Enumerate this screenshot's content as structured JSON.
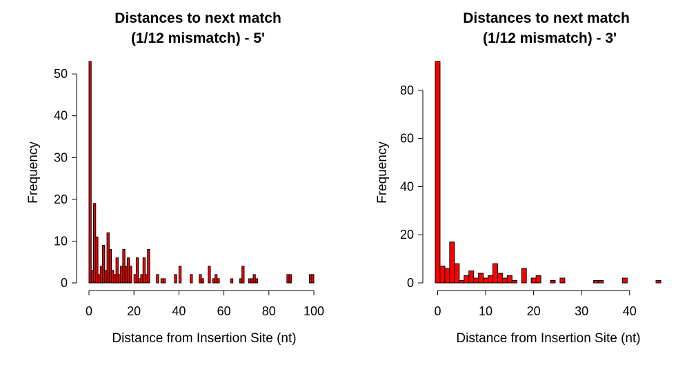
{
  "colors": {
    "bar_fill": "#ff0000",
    "bar_stroke": "#000000"
  },
  "chart_data": [
    {
      "type": "bar",
      "title": [
        "Distances to next match",
        "(1/12 mismatch) - 5'"
      ],
      "xlabel": "Distance from Insertion Site (nt)",
      "ylabel": "Frequency",
      "xlim": [
        0,
        100
      ],
      "ylim": [
        0,
        53
      ],
      "xticks": [
        0,
        20,
        40,
        60,
        80,
        100
      ],
      "yticks": [
        0,
        10,
        20,
        30,
        40,
        50
      ],
      "bin_width": 1,
      "grid": false,
      "legend": "none",
      "bins": [
        {
          "x": 0,
          "y": 53
        },
        {
          "x": 1,
          "y": 3
        },
        {
          "x": 2,
          "y": 19
        },
        {
          "x": 3,
          "y": 11
        },
        {
          "x": 4,
          "y": 2
        },
        {
          "x": 5,
          "y": 4
        },
        {
          "x": 6,
          "y": 9
        },
        {
          "x": 7,
          "y": 3
        },
        {
          "x": 8,
          "y": 12
        },
        {
          "x": 9,
          "y": 8
        },
        {
          "x": 10,
          "y": 3
        },
        {
          "x": 11,
          "y": 2
        },
        {
          "x": 12,
          "y": 6
        },
        {
          "x": 13,
          "y": 2
        },
        {
          "x": 14,
          "y": 4
        },
        {
          "x": 15,
          "y": 8
        },
        {
          "x": 16,
          "y": 4
        },
        {
          "x": 17,
          "y": 6
        },
        {
          "x": 18,
          "y": 4
        },
        {
          "x": 20,
          "y": 2
        },
        {
          "x": 21,
          "y": 6
        },
        {
          "x": 22,
          "y": 1
        },
        {
          "x": 23,
          "y": 2
        },
        {
          "x": 24,
          "y": 6
        },
        {
          "x": 25,
          "y": 2
        },
        {
          "x": 26,
          "y": 8
        },
        {
          "x": 30,
          "y": 2
        },
        {
          "x": 32,
          "y": 1
        },
        {
          "x": 33,
          "y": 1
        },
        {
          "x": 38,
          "y": 2
        },
        {
          "x": 40,
          "y": 4
        },
        {
          "x": 45,
          "y": 2
        },
        {
          "x": 49,
          "y": 2
        },
        {
          "x": 50,
          "y": 1
        },
        {
          "x": 53,
          "y": 4
        },
        {
          "x": 55,
          "y": 1
        },
        {
          "x": 56,
          "y": 2
        },
        {
          "x": 57,
          "y": 1
        },
        {
          "x": 63,
          "y": 1
        },
        {
          "x": 67,
          "y": 1
        },
        {
          "x": 68,
          "y": 4
        },
        {
          "x": 71,
          "y": 1
        },
        {
          "x": 72,
          "y": 1
        },
        {
          "x": 73,
          "y": 2
        },
        {
          "x": 74,
          "y": 1
        },
        {
          "x": 88,
          "y": 2
        },
        {
          "x": 89,
          "y": 2
        },
        {
          "x": 98,
          "y": 2
        },
        {
          "x": 99,
          "y": 2
        }
      ]
    },
    {
      "type": "bar",
      "title": [
        "Distances to next match",
        "(1/12 mismatch) - 3'"
      ],
      "xlabel": "Distance from Insertion Site (nt)",
      "ylabel": "Frequency",
      "xlim": [
        -0.5,
        46.5
      ],
      "ylim": [
        0,
        92
      ],
      "xticks": [
        0,
        10,
        20,
        30,
        40
      ],
      "yticks": [
        0,
        20,
        40,
        60,
        80
      ],
      "bin_width": 1,
      "grid": false,
      "legend": "none",
      "bins": [
        {
          "x": 0,
          "y": 92
        },
        {
          "x": 1,
          "y": 7
        },
        {
          "x": 2,
          "y": 6
        },
        {
          "x": 3,
          "y": 17
        },
        {
          "x": 4,
          "y": 8
        },
        {
          "x": 5,
          "y": 1
        },
        {
          "x": 6,
          "y": 3
        },
        {
          "x": 7,
          "y": 5
        },
        {
          "x": 8,
          "y": 2
        },
        {
          "x": 9,
          "y": 4
        },
        {
          "x": 10,
          "y": 2
        },
        {
          "x": 11,
          "y": 3
        },
        {
          "x": 12,
          "y": 8
        },
        {
          "x": 13,
          "y": 4
        },
        {
          "x": 14,
          "y": 2
        },
        {
          "x": 15,
          "y": 3
        },
        {
          "x": 16,
          "y": 1
        },
        {
          "x": 18,
          "y": 6
        },
        {
          "x": 20,
          "y": 2
        },
        {
          "x": 21,
          "y": 3
        },
        {
          "x": 24,
          "y": 1
        },
        {
          "x": 26,
          "y": 2
        },
        {
          "x": 33,
          "y": 1
        },
        {
          "x": 34,
          "y": 1
        },
        {
          "x": 39,
          "y": 2
        },
        {
          "x": 46,
          "y": 1
        }
      ]
    }
  ]
}
